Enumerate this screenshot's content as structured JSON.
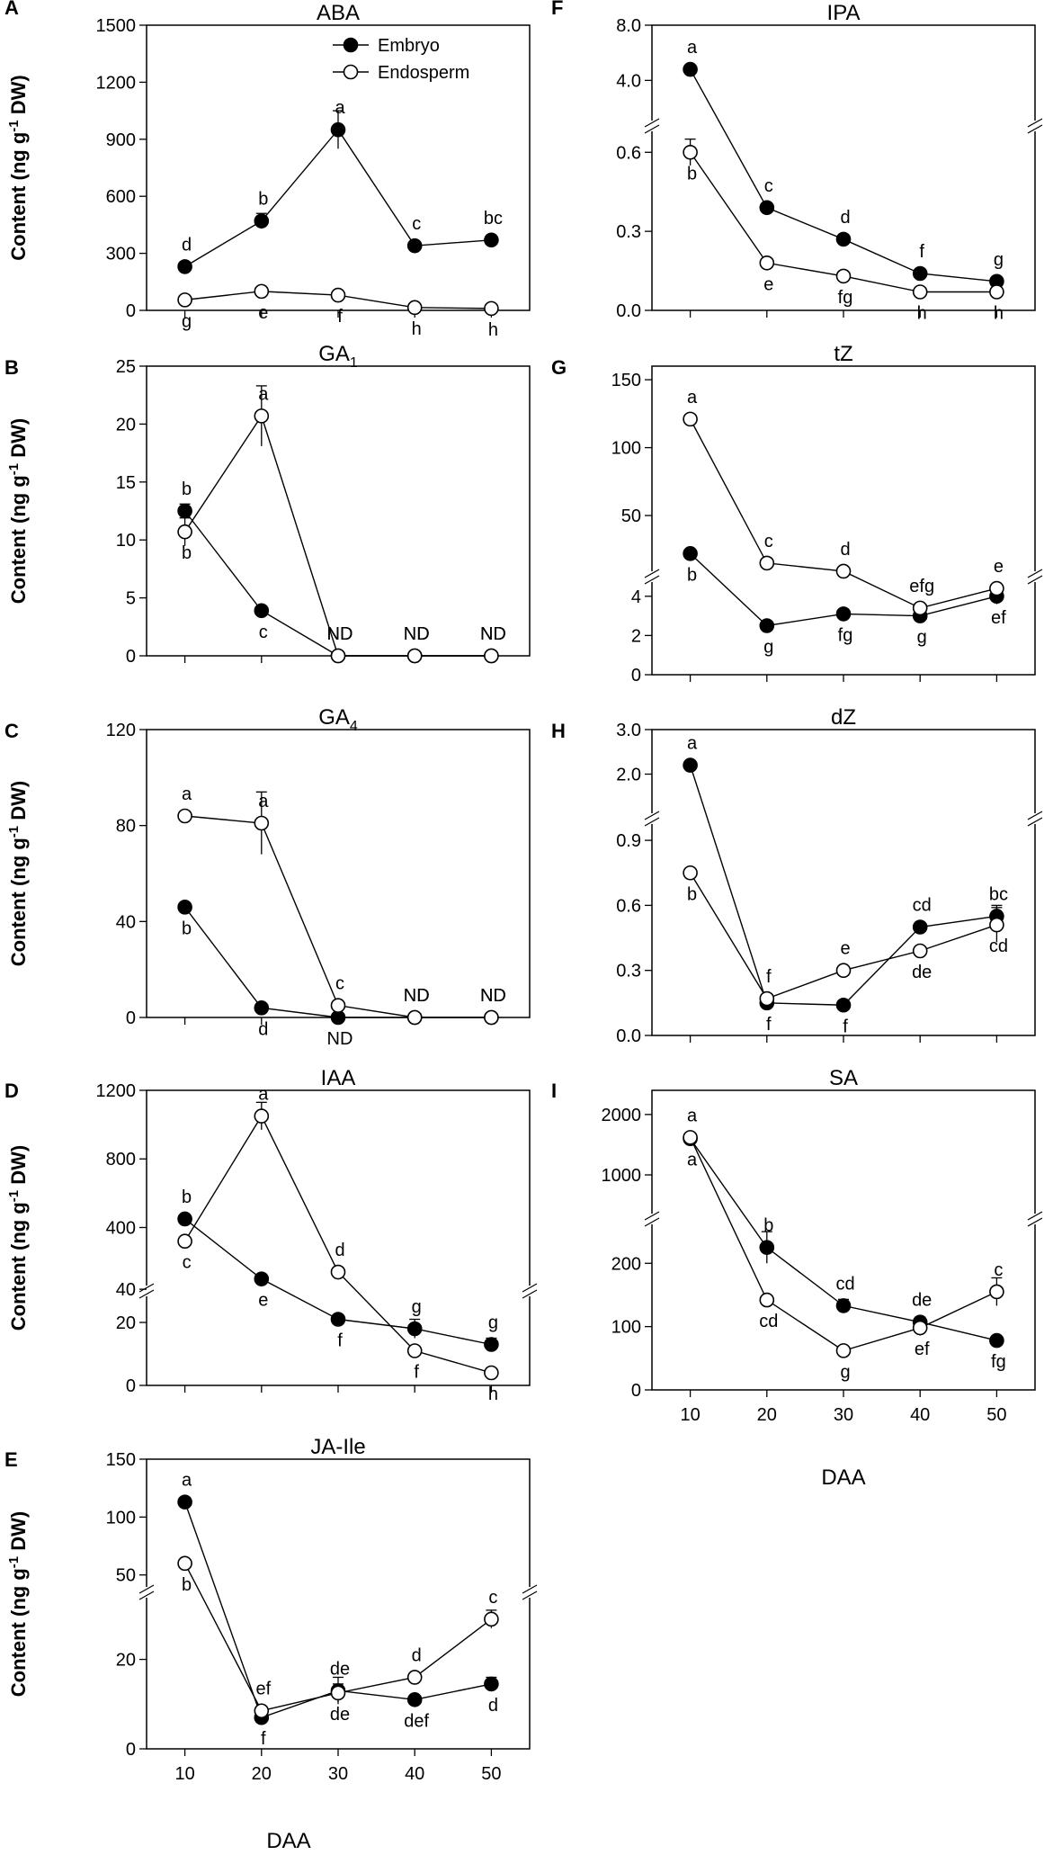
{
  "figure": {
    "x_label": "DAA",
    "x_ticks": [
      10,
      20,
      30,
      40,
      50
    ]
  },
  "legend": [
    {
      "name": "Embryo",
      "marker": "filled-circle"
    },
    {
      "name": "Endosperm",
      "marker": "open-circle"
    }
  ],
  "chart_data": [
    {
      "type": "line",
      "id": "A",
      "letter": "A",
      "title": "ABA",
      "ylabel": "Content (ng g-1 DW)",
      "x": [
        10,
        20,
        30,
        40,
        50
      ],
      "ylim": [
        0,
        1500
      ],
      "yticks": [
        0,
        300,
        600,
        900,
        1200,
        1500
      ],
      "show_legend": true,
      "series": [
        {
          "name": "Embryo",
          "filled": true,
          "values": [
            230,
            470,
            950,
            340,
            370
          ],
          "err": [
            25,
            40,
            100,
            20,
            25
          ],
          "labels": [
            "d",
            "b",
            "a",
            "c",
            "bc"
          ]
        },
        {
          "name": "Endosperm",
          "filled": false,
          "values": [
            55,
            100,
            80,
            15,
            10
          ],
          "err": [
            0,
            0,
            0,
            0,
            0
          ],
          "labels": [
            "g",
            "e",
            "f",
            "h",
            "h"
          ]
        }
      ]
    },
    {
      "type": "line",
      "id": "B",
      "letter": "B",
      "title": "GA",
      "title_sub": "1",
      "ylabel": "Content (ng g-1 DW)",
      "x": [
        10,
        20,
        30,
        40,
        50
      ],
      "ylim": [
        0,
        25
      ],
      "yticks": [
        0,
        5,
        10,
        15,
        20,
        25
      ],
      "series": [
        {
          "name": "Embryo",
          "filled": true,
          "values": [
            12.5,
            3.9,
            0,
            0,
            0
          ],
          "err": [
            0.6,
            0.3,
            0,
            0,
            0
          ],
          "labels": [
            "b",
            "c",
            "ND",
            "ND",
            "ND"
          ]
        },
        {
          "name": "Endosperm",
          "filled": false,
          "values": [
            10.7,
            20.7,
            0,
            0,
            0
          ],
          "err": [
            1.2,
            2.6,
            0,
            0,
            0
          ],
          "labels": [
            "b",
            "a",
            "ND",
            "ND",
            "ND"
          ]
        }
      ]
    },
    {
      "type": "line",
      "id": "C",
      "letter": "C",
      "title": "GA",
      "title_sub": "4",
      "ylabel": "Content (ng g-1 DW)",
      "x": [
        10,
        20,
        30,
        40,
        50
      ],
      "ylim": [
        0,
        120
      ],
      "yticks": [
        0,
        40,
        80,
        120
      ],
      "series": [
        {
          "name": "Embryo",
          "filled": true,
          "values": [
            46,
            4,
            0,
            0,
            0
          ],
          "err": [
            2,
            1,
            0,
            0,
            0
          ],
          "labels": [
            "b",
            "d",
            "ND",
            "ND",
            "ND"
          ]
        },
        {
          "name": "Endosperm",
          "filled": false,
          "values": [
            84,
            81,
            5,
            0,
            0
          ],
          "err": [
            2,
            13,
            0,
            0,
            0
          ],
          "labels": [
            "a",
            "a",
            "c",
            "ND",
            "ND"
          ]
        }
      ]
    },
    {
      "type": "line",
      "id": "D",
      "letter": "D",
      "title": "IAA",
      "ylabel": "Content (ng g-1 DW)",
      "x": [
        10,
        20,
        30,
        40,
        50
      ],
      "broken": true,
      "lower": {
        "range": [
          0,
          30
        ],
        "ticks": [
          0,
          20,
          40
        ]
      },
      "upper": {
        "range": [
          30,
          1200
        ],
        "ticks": [
          400,
          800,
          1200
        ]
      },
      "series": [
        {
          "name": "Embryo",
          "filled": true,
          "values": [
            450,
            100,
            21,
            18,
            13
          ],
          "err": [
            0,
            0,
            0,
            3,
            2
          ],
          "labels": [
            "b",
            "e",
            "f",
            "g",
            "g"
          ]
        },
        {
          "name": "Endosperm",
          "filled": false,
          "values": [
            320,
            1050,
            140,
            11,
            4
          ],
          "err": [
            0,
            80,
            0,
            0,
            0
          ],
          "labels": [
            "c",
            "a",
            "d",
            "f",
            "h"
          ]
        }
      ]
    },
    {
      "type": "line",
      "id": "E",
      "letter": "E",
      "title": "JA-Ile",
      "ylabel": "Content (ng g-1 DW)",
      "x": [
        10,
        20,
        30,
        40,
        50
      ],
      "broken": true,
      "lower": {
        "range": [
          0,
          35
        ],
        "ticks": [
          0,
          20
        ]
      },
      "upper": {
        "range": [
          35,
          150
        ],
        "ticks": [
          50,
          100,
          150
        ]
      },
      "series": [
        {
          "name": "Embryo",
          "filled": true,
          "values": [
            113,
            7,
            13,
            11,
            14.5
          ],
          "err": [
            0,
            0,
            3,
            0,
            1.5
          ],
          "labels": [
            "a",
            "f",
            "de",
            "def",
            "d"
          ]
        },
        {
          "name": "Endosperm",
          "filled": false,
          "values": [
            60,
            8.5,
            12.5,
            16,
            29
          ],
          "err": [
            0,
            0,
            2,
            0,
            2
          ],
          "labels": [
            "b",
            "ef",
            "de",
            "d",
            "c"
          ]
        }
      ]
    },
    {
      "type": "line",
      "id": "F",
      "letter": "F",
      "title": "IPA",
      "ylabel": "",
      "x": [
        10,
        20,
        30,
        40,
        50
      ],
      "broken": true,
      "lower": {
        "range": [
          0,
          0.7
        ],
        "ticks": [
          0.0,
          0.3,
          0.6
        ]
      },
      "upper": {
        "range": [
          0.7,
          8.0
        ],
        "ticks": [
          4.0,
          8.0
        ]
      },
      "series": [
        {
          "name": "Embryo",
          "filled": true,
          "values": [
            4.8,
            0.39,
            0.27,
            0.14,
            0.11
          ],
          "err": [
            0,
            0,
            0,
            0,
            0
          ],
          "labels": [
            "a",
            "c",
            "d",
            "f",
            "g"
          ]
        },
        {
          "name": "Endosperm",
          "filled": false,
          "values": [
            0.6,
            0.18,
            0.13,
            0.07,
            0.07
          ],
          "err": [
            0.05,
            0,
            0,
            0,
            0
          ],
          "labels": [
            "b",
            "e",
            "fg",
            "h",
            "h"
          ]
        }
      ]
    },
    {
      "type": "line",
      "id": "G",
      "letter": "G",
      "title": "tZ",
      "ylabel": "",
      "x": [
        10,
        20,
        30,
        40,
        50
      ],
      "broken": true,
      "lower": {
        "range": [
          0,
          5
        ],
        "ticks": [
          0,
          2,
          4
        ]
      },
      "upper": {
        "range": [
          5,
          160
        ],
        "ticks": [
          50,
          100,
          150
        ]
      },
      "series": [
        {
          "name": "Embryo",
          "filled": true,
          "values": [
            22,
            2.5,
            3.1,
            3.0,
            4.0
          ],
          "err": [
            0,
            0,
            0,
            0.3,
            0.4
          ],
          "labels": [
            "b",
            "g",
            "fg",
            "g",
            "ef"
          ]
        },
        {
          "name": "Endosperm",
          "filled": false,
          "values": [
            121,
            15,
            9,
            3.4,
            4.4
          ],
          "err": [
            0,
            0,
            0,
            0,
            0
          ],
          "labels": [
            "a",
            "c",
            "d",
            "efg",
            "e"
          ]
        }
      ]
    },
    {
      "type": "line",
      "id": "H",
      "letter": "H",
      "title": "dZ",
      "ylabel": "",
      "x": [
        10,
        20,
        30,
        40,
        50
      ],
      "broken": true,
      "lower": {
        "range": [
          0,
          1.0
        ],
        "ticks": [
          0.0,
          0.3,
          0.6,
          0.9
        ]
      },
      "upper": {
        "range": [
          1.0,
          3.0
        ],
        "ticks": [
          2.0,
          3.0
        ]
      },
      "series": [
        {
          "name": "Embryo",
          "filled": true,
          "values": [
            2.2,
            0.15,
            0.14,
            0.5,
            0.55
          ],
          "err": [
            0,
            0,
            0,
            0,
            0.05
          ],
          "labels": [
            "a",
            "f",
            "f",
            "cd",
            "bc"
          ]
        },
        {
          "name": "Endosperm",
          "filled": false,
          "values": [
            0.75,
            0.17,
            0.3,
            0.39,
            0.51
          ],
          "err": [
            0,
            0,
            0,
            0,
            0.08
          ],
          "labels": [
            "b",
            "f",
            "e",
            "de",
            "cd"
          ]
        }
      ]
    },
    {
      "type": "line",
      "id": "I",
      "letter": "I",
      "title": "SA",
      "ylabel": "",
      "x": [
        10,
        20,
        30,
        40,
        50
      ],
      "broken": true,
      "lower": {
        "range": [
          0,
          270
        ],
        "ticks": [
          0,
          100,
          200
        ]
      },
      "upper": {
        "range": [
          270,
          2400
        ],
        "ticks": [
          1000,
          2000
        ]
      },
      "series": [
        {
          "name": "Embryo",
          "filled": true,
          "values": [
            1600,
            225,
            133,
            107,
            78
          ],
          "err": [
            0,
            25,
            10,
            8,
            0
          ],
          "labels": [
            "a",
            "b",
            "cd",
            "de",
            "fg"
          ]
        },
        {
          "name": "Endosperm",
          "filled": false,
          "values": [
            1620,
            142,
            62,
            98,
            155
          ],
          "err": [
            0,
            0,
            0,
            12,
            22
          ],
          "labels": [
            "a",
            "cd",
            "g",
            "ef",
            "c"
          ]
        }
      ]
    }
  ]
}
